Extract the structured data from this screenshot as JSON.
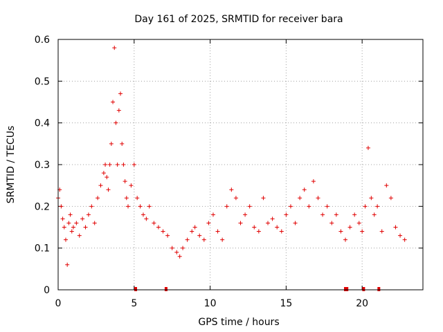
{
  "chart_data": {
    "type": "scatter",
    "title": "Day 161 of 2025, SRMTID for receiver bara",
    "xlabel": "GPS time / hours",
    "ylabel": "SRMTID / TECUs",
    "xlim": [
      0,
      24
    ],
    "ylim": [
      0,
      0.6
    ],
    "xticks": [
      0,
      5,
      10,
      15,
      20
    ],
    "yticks": [
      0,
      0.1,
      0.2,
      0.3,
      0.4,
      0.5,
      0.6
    ],
    "xtick_labels": [
      "0",
      "5",
      "10",
      "15",
      "20"
    ],
    "ytick_labels": [
      "0",
      "0.1",
      "0.2",
      "0.3",
      "0.4",
      "0.5",
      "0.6"
    ],
    "grid": true,
    "marker": "+",
    "color": "#e00000",
    "series": [
      {
        "name": "SRMTID",
        "x": [
          0.0,
          0.1,
          0.2,
          0.3,
          0.4,
          0.5,
          0.6,
          0.7,
          0.8,
          0.9,
          1.0,
          1.2,
          1.4,
          1.6,
          1.8,
          2.0,
          2.2,
          2.4,
          2.6,
          2.8,
          3.0,
          3.1,
          3.2,
          3.3,
          3.4,
          3.5,
          3.6,
          3.7,
          3.8,
          3.9,
          4.0,
          4.1,
          4.2,
          4.3,
          4.4,
          4.5,
          4.6,
          4.8,
          5.0,
          5.2,
          5.4,
          5.6,
          5.8,
          6.0,
          6.3,
          6.6,
          6.9,
          7.2,
          7.5,
          7.8,
          8.0,
          8.2,
          8.5,
          8.8,
          9.0,
          9.3,
          9.6,
          9.9,
          10.2,
          10.5,
          10.8,
          11.1,
          11.4,
          11.7,
          12.0,
          12.3,
          12.6,
          12.9,
          13.2,
          13.5,
          13.8,
          14.1,
          14.4,
          14.7,
          15.0,
          15.3,
          15.6,
          15.9,
          16.2,
          16.5,
          16.8,
          17.1,
          17.4,
          17.7,
          18.0,
          18.3,
          18.6,
          18.9,
          19.2,
          19.5,
          19.8,
          20.0,
          20.2,
          20.4,
          20.6,
          20.8,
          21.0,
          21.3,
          21.6,
          21.9,
          22.2,
          22.5,
          22.8
        ],
        "y": [
          0.22,
          0.24,
          0.2,
          0.17,
          0.15,
          0.12,
          0.06,
          0.16,
          0.18,
          0.14,
          0.15,
          0.16,
          0.13,
          0.17,
          0.15,
          0.18,
          0.2,
          0.16,
          0.22,
          0.25,
          0.28,
          0.3,
          0.27,
          0.24,
          0.3,
          0.35,
          0.45,
          0.58,
          0.4,
          0.3,
          0.43,
          0.47,
          0.35,
          0.3,
          0.26,
          0.22,
          0.2,
          0.25,
          0.3,
          0.22,
          0.2,
          0.18,
          0.17,
          0.2,
          0.16,
          0.15,
          0.14,
          0.13,
          0.1,
          0.09,
          0.08,
          0.1,
          0.12,
          0.14,
          0.15,
          0.13,
          0.12,
          0.16,
          0.18,
          0.14,
          0.12,
          0.2,
          0.24,
          0.22,
          0.16,
          0.18,
          0.2,
          0.15,
          0.14,
          0.22,
          0.16,
          0.17,
          0.15,
          0.14,
          0.18,
          0.2,
          0.16,
          0.22,
          0.24,
          0.2,
          0.26,
          0.22,
          0.18,
          0.2,
          0.16,
          0.18,
          0.14,
          0.12,
          0.15,
          0.18,
          0.16,
          0.14,
          0.2,
          0.34,
          0.22,
          0.18,
          0.2,
          0.14,
          0.25,
          0.22,
          0.15,
          0.13,
          0.12
        ]
      },
      {
        "name": "Gaps",
        "x": [
          5.1,
          7.1,
          18.9,
          19.0,
          20.1,
          21.1
        ],
        "y": [
          0,
          0,
          0,
          0,
          0,
          0
        ]
      }
    ]
  }
}
